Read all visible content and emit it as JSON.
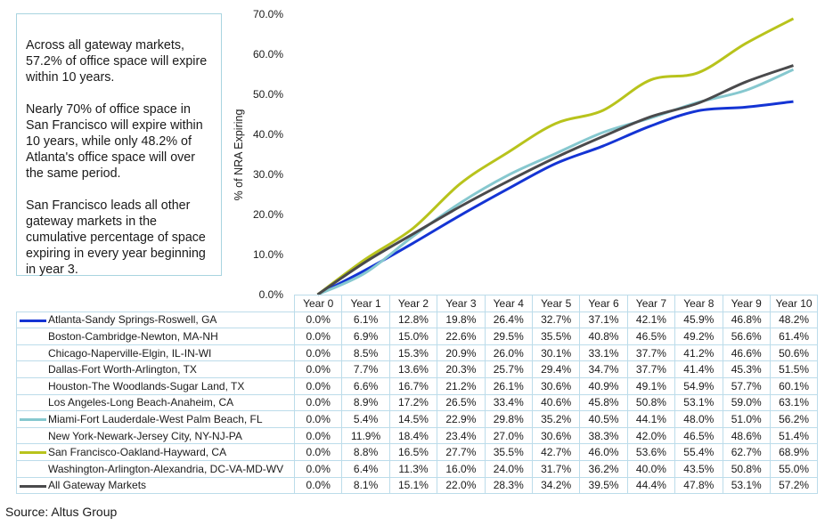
{
  "note": {
    "paragraphs": [
      "Across all gateway markets, 57.2% of office space will expire within 10 years.",
      "Nearly 70% of office space in San Francisco will expire within 10 years, while only 48.2% of Atlanta's office space will over the same period.",
      "San Francisco leads all other gateway markets in the cumulative percentage of space expiring in every year beginning in year 3."
    ]
  },
  "source": "Source: Altus Group",
  "chart_data": {
    "type": "line",
    "ylabel": "% of NRA Expiring",
    "ylim": [
      0,
      70
    ],
    "yticks": [
      "0.0%",
      "10.0%",
      "20.0%",
      "30.0%",
      "40.0%",
      "50.0%",
      "60.0%",
      "70.0%"
    ],
    "categories": [
      "Year 0",
      "Year 1",
      "Year 2",
      "Year 3",
      "Year 4",
      "Year 5",
      "Year 6",
      "Year 7",
      "Year 8",
      "Year 9",
      "Year 10"
    ],
    "legend": "data-table",
    "series": [
      {
        "name": "Atlanta-Sandy Springs-Roswell, GA",
        "plotted": true,
        "color": "#1434d4",
        "values": [
          0.0,
          6.1,
          12.8,
          19.8,
          26.4,
          32.7,
          37.1,
          42.1,
          45.9,
          46.8,
          48.2
        ]
      },
      {
        "name": "Boston-Cambridge-Newton, MA-NH",
        "plotted": false,
        "values": [
          0.0,
          6.9,
          15.0,
          22.6,
          29.5,
          35.5,
          40.8,
          46.5,
          49.2,
          56.6,
          61.4
        ]
      },
      {
        "name": "Chicago-Naperville-Elgin, IL-IN-WI",
        "plotted": false,
        "values": [
          0.0,
          8.5,
          15.3,
          20.9,
          26.0,
          30.1,
          33.1,
          37.7,
          41.2,
          46.6,
          50.6
        ]
      },
      {
        "name": "Dallas-Fort Worth-Arlington, TX",
        "plotted": false,
        "values": [
          0.0,
          7.7,
          13.6,
          20.3,
          25.7,
          29.4,
          34.7,
          37.7,
          41.4,
          45.3,
          51.5
        ]
      },
      {
        "name": "Houston-The Woodlands-Sugar Land, TX",
        "plotted": false,
        "values": [
          0.0,
          6.6,
          16.7,
          21.2,
          26.1,
          30.6,
          40.9,
          49.1,
          54.9,
          57.7,
          60.1
        ]
      },
      {
        "name": "Los Angeles-Long Beach-Anaheim, CA",
        "plotted": false,
        "values": [
          0.0,
          8.9,
          17.2,
          26.5,
          33.4,
          40.6,
          45.8,
          50.8,
          53.1,
          59.0,
          63.1
        ]
      },
      {
        "name": "Miami-Fort Lauderdale-West Palm Beach, FL",
        "plotted": true,
        "color": "#86c8cf",
        "values": [
          0.0,
          5.4,
          14.5,
          22.9,
          29.8,
          35.2,
          40.5,
          44.1,
          48.0,
          51.0,
          56.2
        ]
      },
      {
        "name": "New York-Newark-Jersey City, NY-NJ-PA",
        "plotted": false,
        "values": [
          0.0,
          11.9,
          18.4,
          23.4,
          27.0,
          30.6,
          38.3,
          42.0,
          46.5,
          48.6,
          51.4
        ]
      },
      {
        "name": "San Francisco-Oakland-Hayward, CA",
        "plotted": true,
        "color": "#b8c31c",
        "values": [
          0.0,
          8.8,
          16.5,
          27.7,
          35.5,
          42.7,
          46.0,
          53.6,
          55.4,
          62.7,
          68.9
        ]
      },
      {
        "name": "Washington-Arlington-Alexandria, DC-VA-MD-WV",
        "plotted": false,
        "values": [
          0.0,
          6.4,
          11.3,
          16.0,
          24.0,
          31.7,
          36.2,
          40.0,
          43.5,
          50.8,
          55.0
        ]
      },
      {
        "name": "All Gateway Markets",
        "plotted": true,
        "color": "#4a4a4c",
        "values": [
          0.0,
          8.1,
          15.1,
          22.0,
          28.3,
          34.2,
          39.5,
          44.4,
          47.8,
          53.1,
          57.2
        ]
      }
    ]
  }
}
